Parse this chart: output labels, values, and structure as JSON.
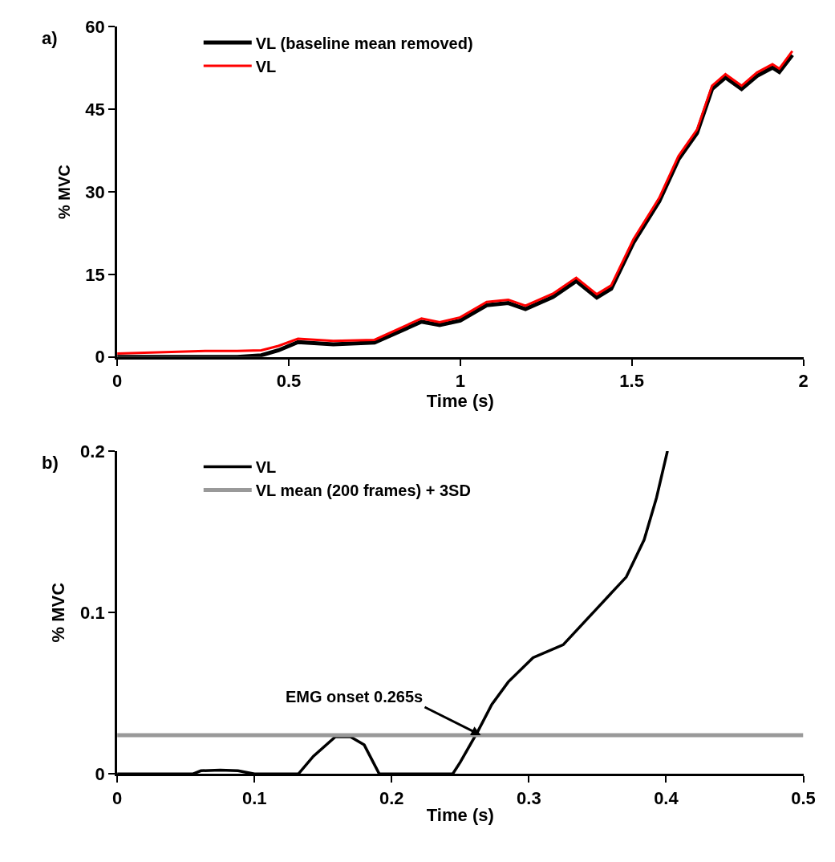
{
  "chart_data": [
    {
      "type": "line",
      "xlabel": "Time (s)",
      "ylabel": "% MVC",
      "annotations": [
        "a)"
      ],
      "legend": "top left",
      "marker": "none",
      "line_style": "solid",
      "xlim": [
        0,
        2
      ],
      "xticks": [
        0,
        0.5,
        1,
        1.5,
        2
      ],
      "ylim": [
        0,
        60
      ],
      "yticks": [
        0,
        15,
        30,
        45,
        60
      ],
      "series": [
        {
          "name": "VL (baseline mean removed)",
          "color": "#000000",
          "x": [
            0,
            0.27,
            0.35,
            0.42,
            0.47,
            0.527,
            0.63,
            0.75,
            0.887,
            0.94,
            1.0,
            1.077,
            1.14,
            1.19,
            1.27,
            1.338,
            1.398,
            1.44,
            1.505,
            1.58,
            1.636,
            1.69,
            1.734,
            1.773,
            1.82,
            1.865,
            1.91,
            1.93,
            1.968
          ],
          "values": [
            0,
            0,
            0,
            0.3,
            1.2,
            2.7,
            2.3,
            2.6,
            6.4,
            5.8,
            6.6,
            9.4,
            9.8,
            8.7,
            10.9,
            13.8,
            10.8,
            12.4,
            20.8,
            28.3,
            35.9,
            40.7,
            48.7,
            50.8,
            48.7,
            51.1,
            52.6,
            51.8,
            54.9
          ]
        },
        {
          "name": "VL",
          "color": "#ff0000",
          "x": [
            0,
            0.27,
            0.35,
            0.42,
            0.47,
            0.527,
            0.63,
            0.75,
            0.887,
            0.94,
            1.0,
            1.077,
            1.14,
            1.19,
            1.27,
            1.338,
            1.398,
            1.44,
            1.505,
            1.58,
            1.636,
            1.69,
            1.734,
            1.773,
            1.82,
            1.865,
            1.91,
            1.93,
            1.968
          ],
          "values": [
            0.6,
            1.1,
            1.1,
            1.2,
            2.0,
            3.3,
            2.9,
            3.1,
            7.0,
            6.3,
            7.2,
            10.0,
            10.4,
            9.3,
            11.5,
            14.4,
            11.4,
            13.0,
            21.4,
            28.9,
            36.5,
            41.3,
            49.3,
            51.4,
            49.3,
            51.7,
            53.2,
            52.4,
            55.6
          ]
        }
      ]
    },
    {
      "type": "line",
      "xlabel": "Time (s)",
      "ylabel": "% MVC",
      "legend": "top left",
      "marker": "none",
      "line_style": "solid",
      "annotations": [
        "b)",
        {
          "text": "EMG onset 0.265s",
          "x": 0.265,
          "y": 0.024
        }
      ],
      "xlim": [
        0,
        0.5
      ],
      "xticks": [
        0,
        0.1,
        0.2,
        0.3,
        0.4,
        0.5
      ],
      "ylim": [
        0,
        0.2
      ],
      "yticks": [
        0,
        0.1,
        0.2
      ],
      "series": [
        {
          "name": "VL",
          "color": "#000000",
          "x": [
            0,
            0.055,
            0.061,
            0.075,
            0.088,
            0.1,
            0.132,
            0.143,
            0.159,
            0.17,
            0.18,
            0.191,
            0.2445,
            0.25,
            0.263,
            0.273,
            0.285,
            0.303,
            0.325,
            0.348,
            0.371,
            0.384,
            0.393,
            0.401
          ],
          "values": [
            0,
            0,
            0.002,
            0.0024,
            0.002,
            0,
            0,
            0.011,
            0.023,
            0.023,
            0.018,
            0,
            0,
            0.0073,
            0.0267,
            0.043,
            0.057,
            0.072,
            0.08,
            0.101,
            0.122,
            0.145,
            0.171,
            0.2
          ]
        },
        {
          "name": "VL mean (200 frames) + 3SD",
          "color": "#999999",
          "x": [
            0,
            0.5
          ],
          "values": [
            0.024,
            0.024
          ]
        }
      ]
    }
  ]
}
